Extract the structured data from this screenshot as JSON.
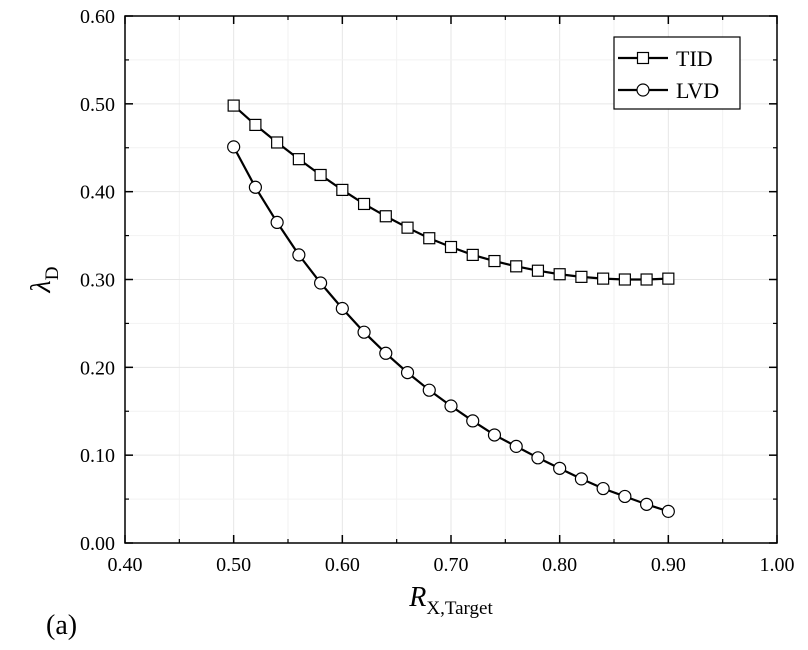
{
  "chart_data": {
    "type": "line",
    "panel_label": "(a)",
    "xlabel_main": "R",
    "xlabel_sub": "X,Target",
    "ylabel_main": "λ",
    "ylabel_sub": "D",
    "xlim": [
      0.4,
      1.0
    ],
    "ylim": [
      0.0,
      0.6
    ],
    "x_ticks": [
      "0.40",
      "0.50",
      "0.60",
      "0.70",
      "0.80",
      "0.90",
      "1.00"
    ],
    "y_ticks": [
      "0.00",
      "0.10",
      "0.20",
      "0.30",
      "0.40",
      "0.50",
      "0.60"
    ],
    "grid": true,
    "legend_position": "top-right",
    "x": [
      0.5,
      0.52,
      0.54,
      0.56,
      0.58,
      0.6,
      0.62,
      0.64,
      0.66,
      0.68,
      0.7,
      0.72,
      0.74,
      0.76,
      0.78,
      0.8,
      0.82,
      0.84,
      0.86,
      0.88,
      0.9
    ],
    "series": [
      {
        "name": "TID",
        "marker": "square",
        "values": [
          0.498,
          0.476,
          0.456,
          0.437,
          0.419,
          0.402,
          0.386,
          0.372,
          0.359,
          0.347,
          0.337,
          0.328,
          0.321,
          0.315,
          0.31,
          0.306,
          0.303,
          0.301,
          0.3,
          0.3,
          0.301
        ]
      },
      {
        "name": "LVD",
        "marker": "circle",
        "values": [
          0.451,
          0.405,
          0.365,
          0.328,
          0.296,
          0.267,
          0.24,
          0.216,
          0.194,
          0.174,
          0.156,
          0.139,
          0.123,
          0.11,
          0.097,
          0.085,
          0.073,
          0.062,
          0.053,
          0.044,
          0.036
        ]
      }
    ]
  }
}
